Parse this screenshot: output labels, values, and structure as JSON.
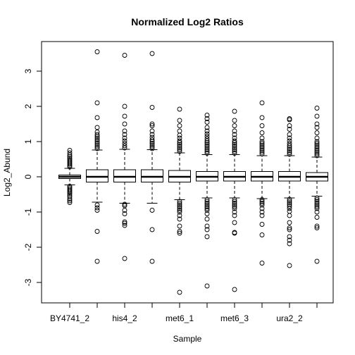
{
  "chart_data": {
    "type": "boxplot",
    "title": "Normalized Log2 Ratios",
    "xlabel": "Sample",
    "ylabel": "Log2_Abund",
    "ylim": [
      -3.5,
      3.75
    ],
    "yticks": [
      -3,
      -2,
      -1,
      0,
      1,
      2,
      3
    ],
    "grid": false,
    "categories": [
      "BY4741_2",
      "",
      "his4_2",
      "",
      "met6_1",
      "",
      "met6_3",
      "",
      "ura2_2",
      ""
    ],
    "boxes": [
      {
        "q1": -0.05,
        "median": 0.0,
        "q3": 0.05,
        "whisker_low": -0.23,
        "whisker_high": 0.24,
        "outliers": [
          0.28,
          0.32,
          0.36,
          0.4,
          0.44,
          0.48,
          0.52,
          0.57,
          0.62,
          0.68,
          0.75,
          -0.27,
          -0.31,
          -0.35,
          -0.39,
          -0.43,
          -0.47,
          -0.52,
          -0.57,
          -0.63,
          -0.68,
          -0.73
        ]
      },
      {
        "q1": -0.15,
        "median": 0.0,
        "q3": 0.2,
        "whisker_low": -0.72,
        "whisker_high": 0.76,
        "outliers": [
          0.8,
          0.85,
          0.9,
          0.95,
          1.0,
          1.05,
          1.1,
          1.15,
          1.2,
          1.27,
          1.4,
          1.68,
          2.1,
          3.55,
          -0.8,
          -0.88,
          -0.95,
          -1.55,
          -2.4
        ]
      },
      {
        "q1": -0.15,
        "median": 0.0,
        "q3": 0.2,
        "whisker_low": -0.75,
        "whisker_high": 0.78,
        "outliers": [
          0.82,
          0.88,
          0.95,
          1.02,
          1.1,
          1.2,
          1.3,
          1.5,
          1.72,
          2.0,
          3.45,
          -0.78,
          -0.82,
          -0.95,
          -1.05,
          -1.28,
          -1.32,
          -1.38,
          -2.32
        ]
      },
      {
        "q1": -0.15,
        "median": 0.0,
        "q3": 0.2,
        "whisker_low": -0.75,
        "whisker_high": 0.77,
        "outliers": [
          0.8,
          0.85,
          0.9,
          0.95,
          1.0,
          1.05,
          1.12,
          1.2,
          1.3,
          1.45,
          1.5,
          1.97,
          3.5,
          -0.95,
          -1.5,
          -2.4
        ]
      },
      {
        "q1": -0.15,
        "median": 0.0,
        "q3": 0.18,
        "whisker_low": -0.65,
        "whisker_high": 0.68,
        "outliers": [
          0.72,
          0.77,
          0.82,
          0.87,
          0.92,
          0.97,
          1.02,
          1.1,
          1.18,
          1.3,
          1.45,
          1.6,
          1.92,
          -0.7,
          -0.75,
          -0.8,
          -0.85,
          -0.9,
          -0.95,
          -1.0,
          -1.1,
          -1.2,
          -1.4,
          -1.55,
          -1.6,
          -3.28
        ]
      },
      {
        "q1": -0.12,
        "median": 0.0,
        "q3": 0.15,
        "whisker_low": -0.6,
        "whisker_high": 0.63,
        "outliers": [
          0.67,
          0.72,
          0.77,
          0.82,
          0.87,
          0.92,
          0.97,
          1.02,
          1.08,
          1.15,
          1.22,
          1.3,
          1.4,
          1.55,
          1.65,
          1.75,
          -0.65,
          -0.7,
          -0.75,
          -0.8,
          -0.85,
          -0.9,
          -0.95,
          -1.05,
          -1.2,
          -1.4,
          -1.5,
          -1.7,
          -3.1
        ]
      },
      {
        "q1": -0.12,
        "median": 0.0,
        "q3": 0.15,
        "whisker_low": -0.6,
        "whisker_high": 0.63,
        "outliers": [
          0.67,
          0.72,
          0.77,
          0.82,
          0.87,
          0.92,
          0.97,
          1.02,
          1.1,
          1.2,
          1.3,
          1.45,
          1.6,
          1.86,
          -0.65,
          -0.7,
          -0.75,
          -0.8,
          -0.85,
          -0.9,
          -1.0,
          -1.1,
          -1.3,
          -1.58,
          -1.6,
          -3.2
        ]
      },
      {
        "q1": -0.12,
        "median": 0.0,
        "q3": 0.15,
        "whisker_low": -0.62,
        "whisker_high": 0.6,
        "outliers": [
          0.65,
          0.7,
          0.75,
          0.8,
          0.85,
          0.9,
          0.95,
          1.0,
          1.1,
          1.25,
          1.45,
          1.68,
          2.1,
          -0.65,
          -0.7,
          -0.75,
          -0.8,
          -0.9,
          -1.0,
          -1.1,
          -1.35,
          -1.65,
          -2.45
        ]
      },
      {
        "q1": -0.12,
        "median": 0.0,
        "q3": 0.15,
        "whisker_low": -0.6,
        "whisker_high": 0.6,
        "outliers": [
          0.64,
          0.69,
          0.74,
          0.79,
          0.84,
          0.89,
          0.95,
          1.02,
          1.1,
          1.2,
          1.35,
          1.45,
          1.62,
          1.65,
          -0.64,
          -0.69,
          -0.74,
          -0.79,
          -0.84,
          -0.9,
          -0.98,
          -1.1,
          -1.3,
          -1.45,
          -1.5,
          -1.7,
          -1.8,
          -1.9,
          -2.52
        ]
      },
      {
        "q1": -0.12,
        "median": 0.0,
        "q3": 0.12,
        "whisker_low": -0.55,
        "whisker_high": 0.56,
        "outliers": [
          0.6,
          0.65,
          0.7,
          0.75,
          0.8,
          0.85,
          0.9,
          0.95,
          1.0,
          1.1,
          1.25,
          1.4,
          1.5,
          1.72,
          1.95,
          -0.6,
          -0.65,
          -0.7,
          -0.75,
          -0.8,
          -0.85,
          -0.9,
          -1.0,
          -1.15,
          -1.4,
          -1.45,
          -2.4
        ]
      }
    ]
  }
}
